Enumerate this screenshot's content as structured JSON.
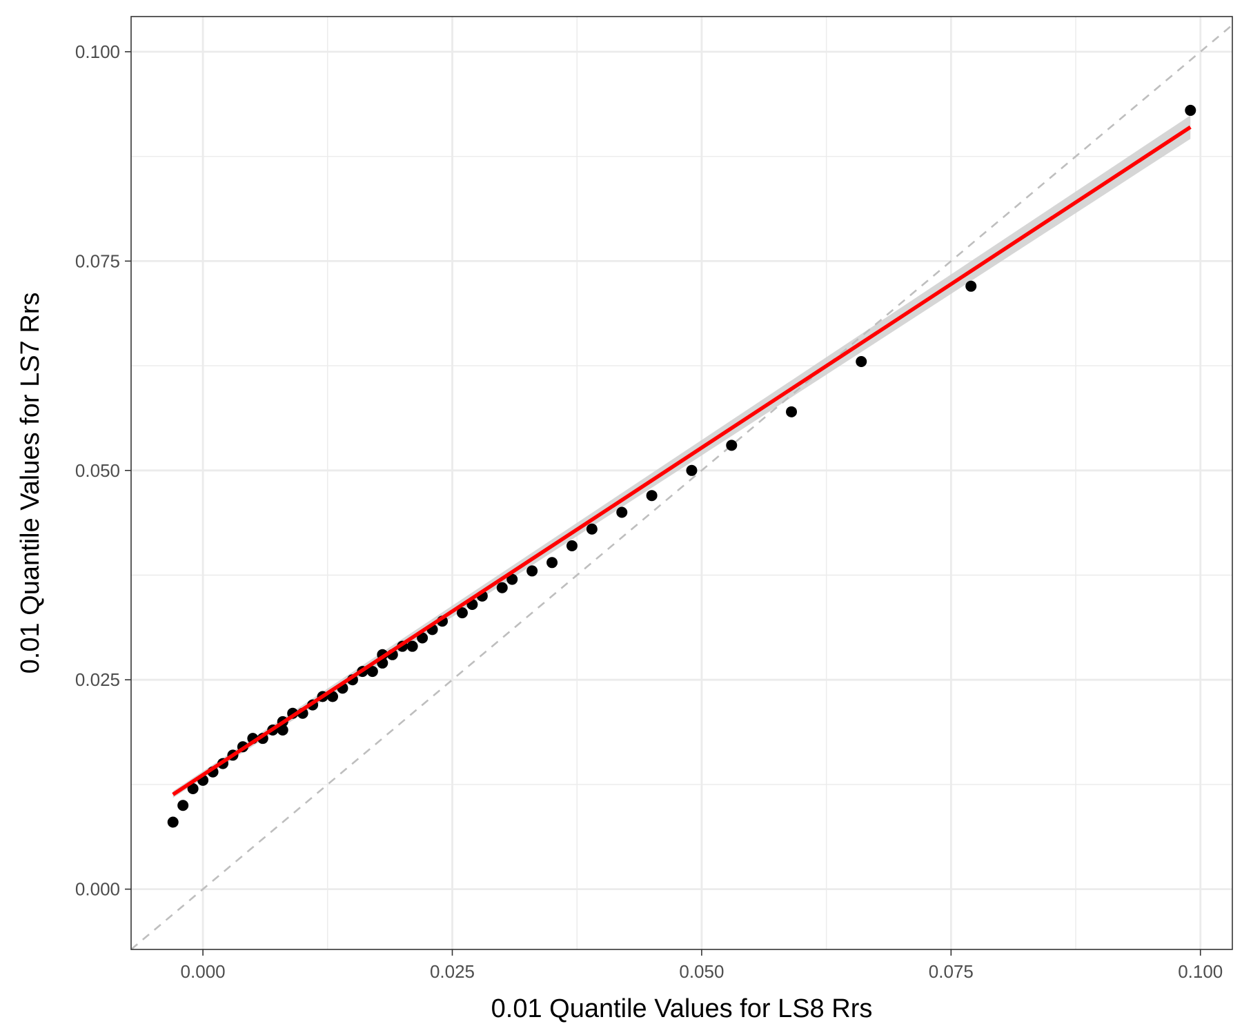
{
  "chart_data": {
    "type": "scatter",
    "title": "",
    "xlabel": "0.01 Quantile Values for LS8 Rrs",
    "ylabel": "0.01 Quantile Values for LS7 Rrs",
    "xlim": [
      -0.0072,
      0.1032
    ],
    "ylim": [
      -0.0072,
      0.1042
    ],
    "x_ticks": [
      0.0,
      0.025,
      0.05,
      0.075,
      0.1
    ],
    "x_tick_labels": [
      "0.000",
      "0.025",
      "0.050",
      "0.075",
      "0.100"
    ],
    "y_ticks": [
      0.0,
      0.025,
      0.05,
      0.075,
      0.1
    ],
    "y_tick_labels": [
      "0.000",
      "0.025",
      "0.050",
      "0.075",
      "0.100"
    ],
    "grid": true,
    "theme": "bw",
    "series": [
      {
        "kind": "points",
        "color": "#000000",
        "points": [
          [
            -0.003,
            0.008
          ],
          [
            -0.002,
            0.01
          ],
          [
            -0.001,
            0.012
          ],
          [
            0.0,
            0.013
          ],
          [
            0.001,
            0.014
          ],
          [
            0.002,
            0.015
          ],
          [
            0.003,
            0.016
          ],
          [
            0.004,
            0.017
          ],
          [
            0.005,
            0.018
          ],
          [
            0.006,
            0.018
          ],
          [
            0.007,
            0.019
          ],
          [
            0.008,
            0.02
          ],
          [
            0.008,
            0.019
          ],
          [
            0.009,
            0.021
          ],
          [
            0.01,
            0.021
          ],
          [
            0.011,
            0.022
          ],
          [
            0.012,
            0.023
          ],
          [
            0.013,
            0.023
          ],
          [
            0.014,
            0.024
          ],
          [
            0.015,
            0.025
          ],
          [
            0.016,
            0.026
          ],
          [
            0.017,
            0.026
          ],
          [
            0.018,
            0.027
          ],
          [
            0.018,
            0.028
          ],
          [
            0.019,
            0.028
          ],
          [
            0.02,
            0.029
          ],
          [
            0.021,
            0.029
          ],
          [
            0.022,
            0.03
          ],
          [
            0.023,
            0.031
          ],
          [
            0.024,
            0.032
          ],
          [
            0.026,
            0.033
          ],
          [
            0.027,
            0.034
          ],
          [
            0.028,
            0.035
          ],
          [
            0.03,
            0.036
          ],
          [
            0.031,
            0.037
          ],
          [
            0.033,
            0.038
          ],
          [
            0.035,
            0.039
          ],
          [
            0.037,
            0.041
          ],
          [
            0.039,
            0.043
          ],
          [
            0.042,
            0.045
          ],
          [
            0.045,
            0.047
          ],
          [
            0.049,
            0.05
          ],
          [
            0.053,
            0.053
          ],
          [
            0.059,
            0.057
          ],
          [
            0.066,
            0.063
          ],
          [
            0.077,
            0.072
          ],
          [
            0.099,
            0.093
          ]
        ]
      },
      {
        "kind": "regression",
        "color": "#ff0000",
        "band_color": "#cccccc",
        "x": [
          -0.003,
          0.099
        ],
        "y": [
          0.0113,
          0.091
        ],
        "band_halfwidth": [
          0.0004,
          0.0014
        ]
      },
      {
        "kind": "identity",
        "color": "#bebebe",
        "dash": true,
        "x": [
          -0.0072,
          0.1032
        ],
        "y": [
          -0.0072,
          0.1032
        ]
      }
    ]
  }
}
